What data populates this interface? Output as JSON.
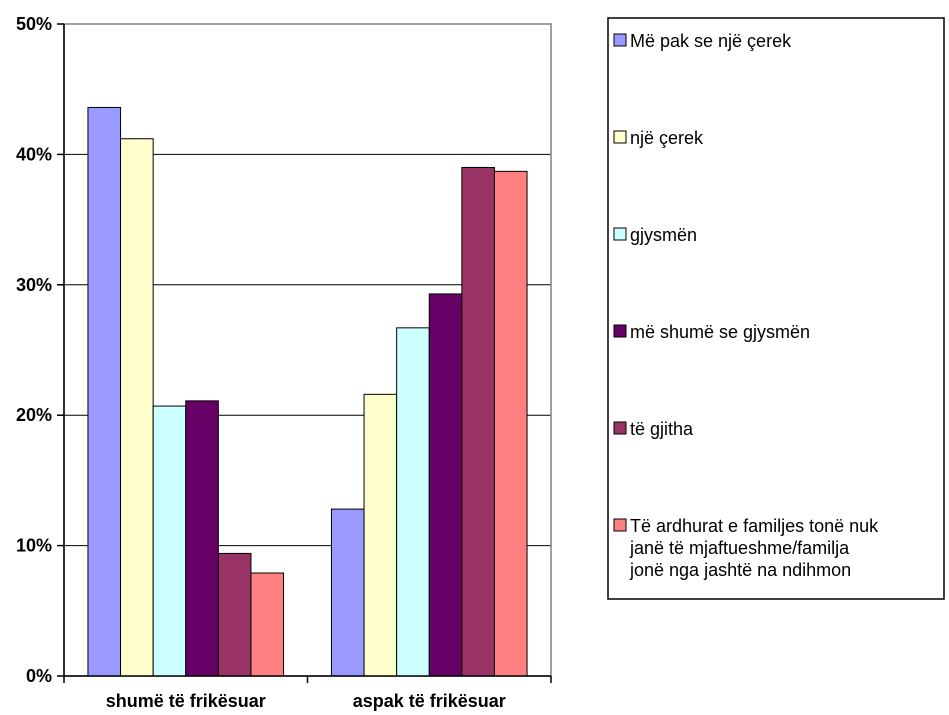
{
  "chart_data": {
    "type": "bar",
    "categories": [
      "shumë të frikësuar",
      "aspak të frikësuar"
    ],
    "series": [
      {
        "name": "Më pak se një çerek",
        "color": "#9999ff",
        "values": [
          43.6,
          12.8
        ]
      },
      {
        "name": "një çerek",
        "color": "#ffffcc",
        "values": [
          41.2,
          21.6
        ]
      },
      {
        "name": "gjysmën",
        "color": "#ccffff",
        "values": [
          20.7,
          26.7
        ]
      },
      {
        "name": "më shumë se gjysmën",
        "color": "#660066",
        "values": [
          21.1,
          29.3
        ]
      },
      {
        "name": "të gjitha",
        "color": "#993366",
        "values": [
          9.4,
          39.0
        ]
      },
      {
        "name": "Të ardhurat e familjes tonë nuk janë të mjaftueshme/familja jonë nga jashtë na ndihmon",
        "color": "#ff8080",
        "values": [
          7.9,
          38.7
        ]
      }
    ],
    "legend_lines": [
      [
        "Më pak se një çerek"
      ],
      [
        "një çerek"
      ],
      [
        "gjysmën"
      ],
      [
        "më shumë se gjysmën"
      ],
      [
        "të gjitha"
      ],
      [
        "Të ardhurat e familjes tonë nuk",
        "janë të mjaftueshme/familja",
        "jonë nga jashtë na ndihmon"
      ]
    ],
    "ylim": [
      0,
      50
    ],
    "yticks": [
      "0%",
      "10%",
      "20%",
      "30%",
      "40%",
      "50%"
    ],
    "ytick_values": [
      0,
      10,
      20,
      30,
      40,
      50
    ],
    "grid": true,
    "legend_position": "right",
    "title": "",
    "xlabel": "",
    "ylabel": ""
  }
}
